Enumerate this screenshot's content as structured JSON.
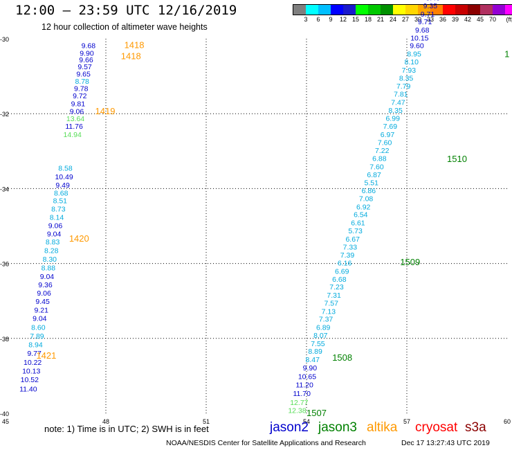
{
  "header": {
    "title": "12:00 – 23:59 UTC 12/16/2019",
    "subtitle": "12 hour collection of altimeter wave heights"
  },
  "colorbar": {
    "colors": [
      "#7f7f7f",
      "#00ffff",
      "#00bfff",
      "#0000ff",
      "#1a1acd",
      "#00ff00",
      "#00c800",
      "#009000",
      "#ffff00",
      "#ffd700",
      "#ffa500",
      "#ff7f00",
      "#ff0000",
      "#c80000",
      "#8b0000",
      "#b03060",
      "#9400d3",
      "#ff00ff",
      "#000000"
    ],
    "labels": [
      "3",
      "6",
      "9",
      "12",
      "15",
      "18",
      "21",
      "24",
      "27",
      "30",
      "33",
      "36",
      "39",
      "42",
      "45",
      "70"
    ],
    "unit": "(ft)"
  },
  "axes": {
    "y_labels": [
      "-30",
      "-32",
      "-34",
      "-36",
      "-38",
      "-40"
    ],
    "x_labels": [
      "45",
      "48",
      "51",
      "54",
      "57",
      "60"
    ]
  },
  "tracks": [
    {
      "satellite": "altika",
      "points": [
        {
          "v": "9.68",
          "lon": 47.48,
          "lat": -30.18,
          "c": "#0000cd"
        },
        {
          "v": "9.90",
          "lon": 47.43,
          "lat": -30.38,
          "c": "#0000cd"
        },
        {
          "v": "9.66",
          "lon": 47.41,
          "lat": -30.55,
          "c": "#0000cd"
        },
        {
          "v": "9.57",
          "lon": 47.37,
          "lat": -30.74,
          "c": "#0000cd"
        },
        {
          "v": "9.65",
          "lon": 47.33,
          "lat": -30.93,
          "c": "#0000cd"
        },
        {
          "v": "8.78",
          "lon": 47.29,
          "lat": -31.13,
          "c": "#00aadd"
        },
        {
          "v": "9.78",
          "lon": 47.26,
          "lat": -31.32,
          "c": "#0000cd"
        },
        {
          "v": "9.72",
          "lon": 47.22,
          "lat": -31.52,
          "c": "#0000cd"
        },
        {
          "v": "9.81",
          "lon": 47.17,
          "lat": -31.73,
          "c": "#0000cd"
        },
        {
          "v": "9.06",
          "lon": 47.13,
          "lat": -31.93,
          "c": "#0000cd"
        },
        {
          "v": "13.64",
          "lon": 47.09,
          "lat": -32.13,
          "c": "#55dd55"
        },
        {
          "v": "11.76",
          "lon": 47.05,
          "lat": -32.33,
          "c": "#0000cd"
        },
        {
          "v": "14.94",
          "lon": 47.0,
          "lat": -32.55,
          "c": "#55dd55"
        },
        {
          "v": "8.58",
          "lon": 46.79,
          "lat": -33.45,
          "c": "#00aadd"
        },
        {
          "v": "10.49",
          "lon": 46.75,
          "lat": -33.68,
          "c": "#0000cd"
        },
        {
          "v": "9.49",
          "lon": 46.71,
          "lat": -33.9,
          "c": "#0000cd"
        },
        {
          "v": "8.68",
          "lon": 46.66,
          "lat": -34.11,
          "c": "#00aadd"
        },
        {
          "v": "8.51",
          "lon": 46.63,
          "lat": -34.32,
          "c": "#00aadd"
        },
        {
          "v": "8.73",
          "lon": 46.58,
          "lat": -34.54,
          "c": "#00aadd"
        },
        {
          "v": "8.14",
          "lon": 46.53,
          "lat": -34.76,
          "c": "#00aadd"
        },
        {
          "v": "9.06",
          "lon": 46.49,
          "lat": -34.98,
          "c": "#0000cd"
        },
        {
          "v": "9.04",
          "lon": 46.45,
          "lat": -35.2,
          "c": "#0000cd"
        },
        {
          "v": "8.83",
          "lon": 46.41,
          "lat": -35.42,
          "c": "#00aadd"
        },
        {
          "v": "8.28",
          "lon": 46.37,
          "lat": -35.65,
          "c": "#00aadd"
        },
        {
          "v": "8.30",
          "lon": 46.32,
          "lat": -35.88,
          "c": "#00aadd"
        },
        {
          "v": "8.88",
          "lon": 46.28,
          "lat": -36.11,
          "c": "#00aadd"
        },
        {
          "v": "9.04",
          "lon": 46.24,
          "lat": -36.34,
          "c": "#0000cd"
        },
        {
          "v": "9.36",
          "lon": 46.19,
          "lat": -36.56,
          "c": "#0000cd"
        },
        {
          "v": "9.06",
          "lon": 46.15,
          "lat": -36.78,
          "c": "#0000cd"
        },
        {
          "v": "9.45",
          "lon": 46.11,
          "lat": -37.01,
          "c": "#0000cd"
        },
        {
          "v": "9.21",
          "lon": 46.07,
          "lat": -37.24,
          "c": "#0000cd"
        },
        {
          "v": "9.04",
          "lon": 46.02,
          "lat": -37.46,
          "c": "#0000cd"
        },
        {
          "v": "8.60",
          "lon": 45.98,
          "lat": -37.7,
          "c": "#00aadd"
        },
        {
          "v": "7.89",
          "lon": 45.94,
          "lat": -37.93,
          "c": "#00aadd"
        },
        {
          "v": "8.94",
          "lon": 45.9,
          "lat": -38.16,
          "c": "#00aadd"
        },
        {
          "v": "9.77",
          "lon": 45.86,
          "lat": -38.39,
          "c": "#0000cd"
        },
        {
          "v": "10.22",
          "lon": 45.81,
          "lat": -38.63,
          "c": "#0000cd"
        },
        {
          "v": "10.13",
          "lon": 45.77,
          "lat": -38.86,
          "c": "#0000cd"
        },
        {
          "v": "10.52",
          "lon": 45.72,
          "lat": -39.09,
          "c": "#0000cd"
        },
        {
          "v": "11.40",
          "lon": 45.68,
          "lat": -39.34,
          "c": "#0000cd"
        }
      ]
    },
    {
      "satellite": "jason3",
      "points": [
        {
          "v": "12.38",
          "lon": 53.72,
          "lat": -39.92,
          "c": "#55dd55"
        },
        {
          "v": "12.77",
          "lon": 53.78,
          "lat": -39.7,
          "c": "#55dd55"
        },
        {
          "v": "11.70",
          "lon": 53.86,
          "lat": -39.46,
          "c": "#0000cd"
        },
        {
          "v": "11.20",
          "lon": 53.94,
          "lat": -39.23,
          "c": "#0000cd"
        },
        {
          "v": "10.65",
          "lon": 54.02,
          "lat": -39.01,
          "c": "#0000cd"
        },
        {
          "v": "9.90",
          "lon": 54.1,
          "lat": -38.78,
          "c": "#0000cd"
        },
        {
          "v": "8.47",
          "lon": 54.18,
          "lat": -38.56,
          "c": "#00aadd"
        },
        {
          "v": "8.89",
          "lon": 54.26,
          "lat": -38.34,
          "c": "#00aadd"
        },
        {
          "v": "7.55",
          "lon": 54.34,
          "lat": -38.13,
          "c": "#00aadd"
        },
        {
          "v": "8.07",
          "lon": 54.42,
          "lat": -37.91,
          "c": "#00aadd"
        },
        {
          "v": "6.89",
          "lon": 54.5,
          "lat": -37.7,
          "c": "#00aadd"
        },
        {
          "v": "7.37",
          "lon": 54.58,
          "lat": -37.48,
          "c": "#00aadd"
        },
        {
          "v": "7.13",
          "lon": 54.66,
          "lat": -37.27,
          "c": "#00aadd"
        },
        {
          "v": "7.57",
          "lon": 54.74,
          "lat": -37.05,
          "c": "#00aadd"
        },
        {
          "v": "7.31",
          "lon": 54.82,
          "lat": -36.84,
          "c": "#00aadd"
        },
        {
          "v": "7.23",
          "lon": 54.9,
          "lat": -36.62,
          "c": "#00aadd"
        },
        {
          "v": "6.68",
          "lon": 54.98,
          "lat": -36.41,
          "c": "#00aadd"
        },
        {
          "v": "6.69",
          "lon": 55.06,
          "lat": -36.2,
          "c": "#00aadd"
        },
        {
          "v": "6.16",
          "lon": 55.14,
          "lat": -35.98,
          "c": "#00aadd"
        },
        {
          "v": "7.39",
          "lon": 55.22,
          "lat": -35.77,
          "c": "#00aadd"
        },
        {
          "v": "7.33",
          "lon": 55.3,
          "lat": -35.55,
          "c": "#00aadd"
        },
        {
          "v": "6.67",
          "lon": 55.38,
          "lat": -35.34,
          "c": "#00aadd"
        },
        {
          "v": "5.73",
          "lon": 55.46,
          "lat": -35.12,
          "c": "#00aadd"
        },
        {
          "v": "6.61",
          "lon": 55.54,
          "lat": -34.91,
          "c": "#00aadd"
        },
        {
          "v": "6.54",
          "lon": 55.62,
          "lat": -34.69,
          "c": "#00aadd"
        },
        {
          "v": "6.92",
          "lon": 55.7,
          "lat": -34.48,
          "c": "#00aadd"
        },
        {
          "v": "7.08",
          "lon": 55.78,
          "lat": -34.26,
          "c": "#00aadd"
        },
        {
          "v": "6.86",
          "lon": 55.86,
          "lat": -34.05,
          "c": "#00aadd"
        },
        {
          "v": "5.51",
          "lon": 55.94,
          "lat": -33.84,
          "c": "#00aadd"
        },
        {
          "v": "6.87",
          "lon": 56.02,
          "lat": -33.62,
          "c": "#00aadd"
        },
        {
          "v": "7.60",
          "lon": 56.1,
          "lat": -33.41,
          "c": "#00aadd"
        },
        {
          "v": "6.88",
          "lon": 56.18,
          "lat": -33.19,
          "c": "#00aadd"
        },
        {
          "v": "7.22",
          "lon": 56.26,
          "lat": -32.98,
          "c": "#00aadd"
        },
        {
          "v": "7.60",
          "lon": 56.34,
          "lat": -32.76,
          "c": "#00aadd"
        },
        {
          "v": "6.97",
          "lon": 56.42,
          "lat": -32.55,
          "c": "#00aadd"
        },
        {
          "v": "7.69",
          "lon": 56.5,
          "lat": -32.33,
          "c": "#00aadd"
        },
        {
          "v": "6.99",
          "lon": 56.58,
          "lat": -32.12,
          "c": "#00aadd"
        },
        {
          "v": "8.35",
          "lon": 56.66,
          "lat": -31.9,
          "c": "#00aadd"
        },
        {
          "v": "7.47",
          "lon": 56.74,
          "lat": -31.69,
          "c": "#00aadd"
        },
        {
          "v": "7.81",
          "lon": 56.82,
          "lat": -31.47,
          "c": "#00aadd"
        },
        {
          "v": "7.79",
          "lon": 56.9,
          "lat": -31.26,
          "c": "#00aadd"
        },
        {
          "v": "8.35",
          "lon": 56.98,
          "lat": -31.04,
          "c": "#00aadd"
        },
        {
          "v": "7.93",
          "lon": 57.06,
          "lat": -30.83,
          "c": "#00aadd"
        },
        {
          "v": "8.10",
          "lon": 57.14,
          "lat": -30.61,
          "c": "#00aadd"
        },
        {
          "v": "8.95",
          "lon": 57.22,
          "lat": -30.4,
          "c": "#00aadd"
        },
        {
          "v": "9.60",
          "lon": 57.3,
          "lat": -30.18,
          "c": "#0000cd"
        },
        {
          "v": "10.15",
          "lon": 57.38,
          "lat": -29.97,
          "c": "#0000cd"
        },
        {
          "v": "9.68",
          "lon": 57.46,
          "lat": -29.76,
          "c": "#0000cd"
        },
        {
          "v": "9.71",
          "lon": 57.54,
          "lat": -29.54,
          "c": "#0000cd"
        },
        {
          "v": "9.71",
          "lon": 57.62,
          "lat": -29.33,
          "c": "#0000cd"
        },
        {
          "v": "9.35",
          "lon": 57.7,
          "lat": -29.11,
          "c": "#0000cd"
        },
        {
          "v": "9.43",
          "lon": 57.78,
          "lat": -28.9,
          "c": "#0000cd"
        },
        {
          "v": "9.32",
          "lon": 57.86,
          "lat": -28.68,
          "c": "#0000cd"
        }
      ]
    }
  ],
  "time_labels": [
    {
      "text": "1418",
      "lon": 48.55,
      "lat": -30.16,
      "c": "#ff9900"
    },
    {
      "text": "1418",
      "lon": 48.45,
      "lat": -30.45,
      "c": "#ff9900"
    },
    {
      "text": "1419",
      "lon": 47.68,
      "lat": -31.92,
      "c": "#ff9900"
    },
    {
      "text": "1420",
      "lon": 46.9,
      "lat": -35.32,
      "c": "#ff9900"
    },
    {
      "text": "1421",
      "lon": 45.92,
      "lat": -38.45,
      "c": "#ff9900"
    },
    {
      "text": "1507",
      "lon": 54.0,
      "lat": -39.98,
      "c": "#008000"
    },
    {
      "text": "1508",
      "lon": 54.77,
      "lat": -38.5,
      "c": "#008000"
    },
    {
      "text": "1509",
      "lon": 56.8,
      "lat": -35.95,
      "c": "#008000"
    },
    {
      "text": "1510",
      "lon": 58.2,
      "lat": -33.2,
      "c": "#008000"
    },
    {
      "text": "1",
      "lon": 59.92,
      "lat": -30.4,
      "c": "#008000"
    }
  ],
  "note": "note: 1) Time is in UTC; 2) SWH is in feet",
  "legend": [
    {
      "label": "jason2",
      "color": "#0000cd"
    },
    {
      "label": "jason3",
      "color": "#008000"
    },
    {
      "label": "altika",
      "color": "#ff9900"
    },
    {
      "label": "cryosat",
      "color": "#ff0000"
    },
    {
      "label": "s3a",
      "color": "#8b0000"
    }
  ],
  "footer": {
    "org": "NOAA/NESDIS Center for Satellite Applications and Research",
    "date": "Dec 17 13:27:43 UTC 2019"
  }
}
